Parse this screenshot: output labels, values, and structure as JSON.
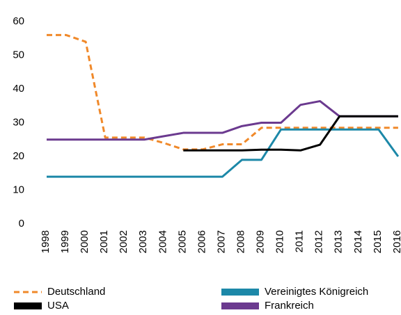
{
  "chart_data": {
    "type": "line",
    "categories": [
      "1998",
      "1999",
      "2000",
      "2001",
      "2002",
      "2003",
      "2004",
      "2005",
      "2006",
      "2007",
      "2008",
      "2009",
      "2010",
      "2011",
      "2012",
      "2013",
      "2014",
      "2015",
      "2016"
    ],
    "series": [
      {
        "name": "Deutschland",
        "color": "#f0892a",
        "linestyle": "dashed",
        "values": [
          56,
          56,
          54,
          25.6,
          25.6,
          25.6,
          24,
          22.1,
          22.1,
          23.6,
          23.6,
          28.5,
          28.5,
          28.5,
          28.5,
          28.5,
          28.5,
          28.5,
          28.5
        ]
      },
      {
        "name": "Vereinigtes Königreich",
        "color": "#1c88a8",
        "linestyle": "solid",
        "values": [
          14,
          14,
          14,
          14,
          14,
          14,
          14,
          14,
          14,
          14,
          19,
          19,
          28,
          28,
          28,
          28,
          28,
          28,
          20
        ]
      },
      {
        "name": "Frankreich",
        "color": "#6b3a8f",
        "linestyle": "solid",
        "values": [
          25,
          25,
          25,
          25,
          25,
          25,
          26,
          27,
          27,
          27,
          29,
          30,
          30,
          35.3,
          36.4,
          31.9,
          31.9,
          31.9,
          31.9
        ]
      },
      {
        "name": "USA",
        "color": "#000000",
        "linestyle": "solid",
        "values": [
          null,
          null,
          null,
          null,
          null,
          null,
          null,
          21.8,
          21.8,
          21.8,
          21.8,
          22,
          22,
          21.8,
          23.5,
          31.9,
          31.9,
          31.9,
          31.9
        ]
      }
    ],
    "ylim": [
      0,
      60
    ],
    "yticks": [
      0,
      10,
      20,
      30,
      40,
      50,
      60
    ],
    "grid": false
  }
}
